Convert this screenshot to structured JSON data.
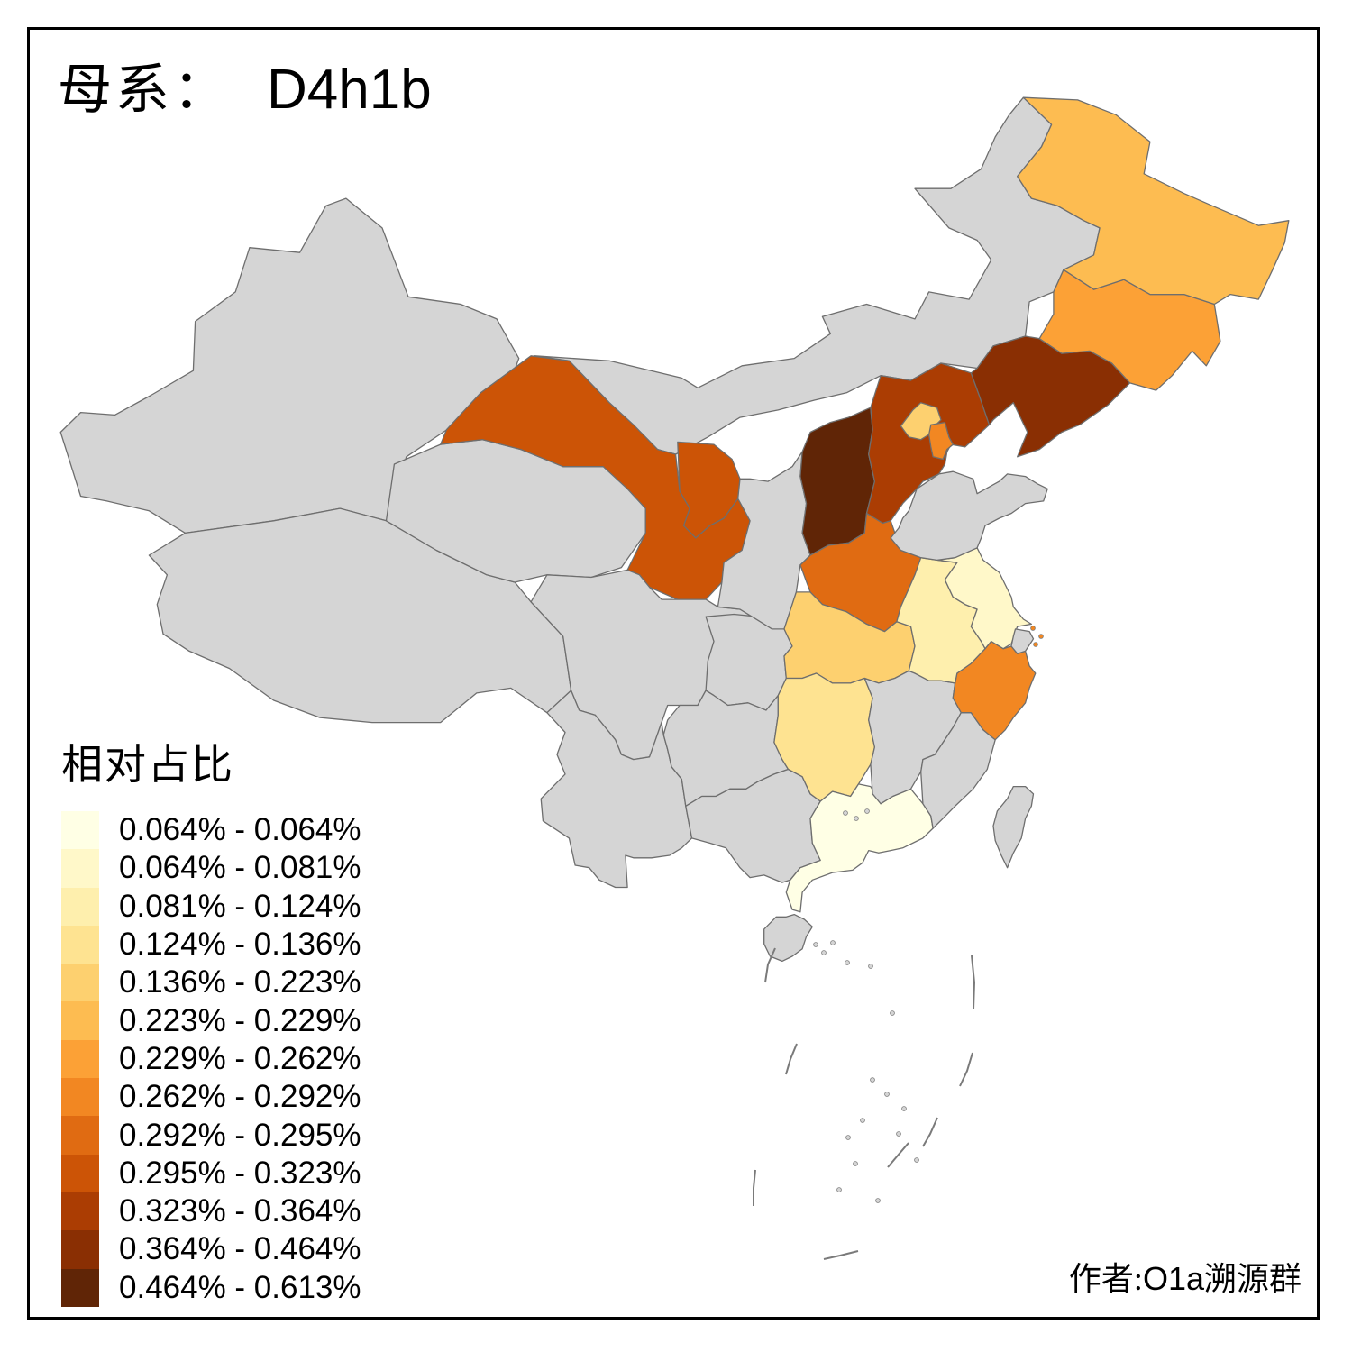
{
  "page": {
    "background": "#FFFFFF",
    "frame_border_color": "#000000"
  },
  "title": {
    "label_prefix": "母系：",
    "haplogroup": "D4h1b"
  },
  "legend": {
    "title": "相对占比",
    "items": [
      {
        "range": "0.064% - 0.064%",
        "color": "#FFFFE5"
      },
      {
        "range": "0.064% - 0.081%",
        "color": "#FFF8C9"
      },
      {
        "range": "0.081% - 0.124%",
        "color": "#FEEFAD"
      },
      {
        "range": "0.124% - 0.136%",
        "color": "#FEE391"
      },
      {
        "range": "0.136% - 0.223%",
        "color": "#FDD06F"
      },
      {
        "range": "0.223% - 0.229%",
        "color": "#FDBC51"
      },
      {
        "range": "0.229% - 0.262%",
        "color": "#FCA136"
      },
      {
        "range": "0.262% - 0.292%",
        "color": "#F28722"
      },
      {
        "range": "0.292% - 0.295%",
        "color": "#E06B12"
      },
      {
        "range": "0.295% - 0.323%",
        "color": "#CC5406"
      },
      {
        "range": "0.323% - 0.364%",
        "color": "#AB3D03"
      },
      {
        "range": "0.364% - 0.464%",
        "color": "#8A2F03"
      },
      {
        "range": "0.464% - 0.613%",
        "color": "#602506"
      }
    ]
  },
  "attribution": {
    "prefix": "作者:",
    "group": "O1a",
    "suffix": "溯源群"
  },
  "map": {
    "no_data_color": "#D5D5D5",
    "border_color": "#6E6E6E",
    "sea_background": "#FFFFFF",
    "province_buckets": {
      "guangdong": 1,
      "jiangsu": 2,
      "anhui": 3,
      "hunan": 4,
      "beijing": 5,
      "hubei": 5,
      "heilongjiang": 6,
      "jilin": 7,
      "zhejiang": 8,
      "tianjin": 8,
      "henan": 9,
      "gansu": 10,
      "ningxia": 10,
      "hebei": 11,
      "liaoning": 12,
      "shanxi": 13
    }
  },
  "chart_data": {
    "type": "heatmap",
    "title": "母系： D4h1b",
    "legend_title": "相对占比",
    "legend_position": "bottom-left",
    "palette": [
      "#FFFFE5",
      "#FFF8C9",
      "#FEEFAD",
      "#FEE391",
      "#FDD06F",
      "#FDBC51",
      "#FCA136",
      "#F28722",
      "#E06B12",
      "#CC5406",
      "#AB3D03",
      "#8A2F03",
      "#602506"
    ],
    "bins": [
      "0.064% - 0.064%",
      "0.064% - 0.081%",
      "0.081% - 0.124%",
      "0.124% - 0.136%",
      "0.136% - 0.223%",
      "0.223% - 0.229%",
      "0.229% - 0.262%",
      "0.262% - 0.292%",
      "0.292% - 0.295%",
      "0.295% - 0.323%",
      "0.323% - 0.364%",
      "0.364% - 0.464%",
      "0.464% - 0.613%"
    ],
    "regions": [
      {
        "name": "Guangdong",
        "bin": "0.064% - 0.064%"
      },
      {
        "name": "Jiangsu",
        "bin": "0.064% - 0.081%"
      },
      {
        "name": "Anhui",
        "bin": "0.081% - 0.124%"
      },
      {
        "name": "Hunan",
        "bin": "0.124% - 0.136%"
      },
      {
        "name": "Beijing",
        "bin": "0.136% - 0.223%"
      },
      {
        "name": "Hubei",
        "bin": "0.136% - 0.223%"
      },
      {
        "name": "Heilongjiang",
        "bin": "0.223% - 0.229%"
      },
      {
        "name": "Jilin",
        "bin": "0.229% - 0.262%"
      },
      {
        "name": "Zhejiang",
        "bin": "0.262% - 0.292%"
      },
      {
        "name": "Tianjin",
        "bin": "0.262% - 0.292%"
      },
      {
        "name": "Henan",
        "bin": "0.292% - 0.295%"
      },
      {
        "name": "Gansu",
        "bin": "0.295% - 0.323%"
      },
      {
        "name": "Ningxia",
        "bin": "0.295% - 0.323%"
      },
      {
        "name": "Hebei",
        "bin": "0.323% - 0.364%"
      },
      {
        "name": "Liaoning",
        "bin": "0.364% - 0.464%"
      },
      {
        "name": "Shanxi",
        "bin": "0.464% - 0.613%"
      },
      {
        "name": "Xinjiang",
        "bin": null
      },
      {
        "name": "Tibet",
        "bin": null
      },
      {
        "name": "Qinghai",
        "bin": null
      },
      {
        "name": "Inner Mongolia",
        "bin": null
      },
      {
        "name": "Shaanxi",
        "bin": null
      },
      {
        "name": "Sichuan",
        "bin": null
      },
      {
        "name": "Chongqing",
        "bin": null
      },
      {
        "name": "Yunnan",
        "bin": null
      },
      {
        "name": "Guizhou",
        "bin": null
      },
      {
        "name": "Guangxi",
        "bin": null
      },
      {
        "name": "Hainan",
        "bin": null
      },
      {
        "name": "Jiangxi",
        "bin": null
      },
      {
        "name": "Fujian",
        "bin": null
      },
      {
        "name": "Shandong",
        "bin": null
      },
      {
        "name": "Shanghai",
        "bin": null
      },
      {
        "name": "Taiwan",
        "bin": null
      }
    ]
  }
}
